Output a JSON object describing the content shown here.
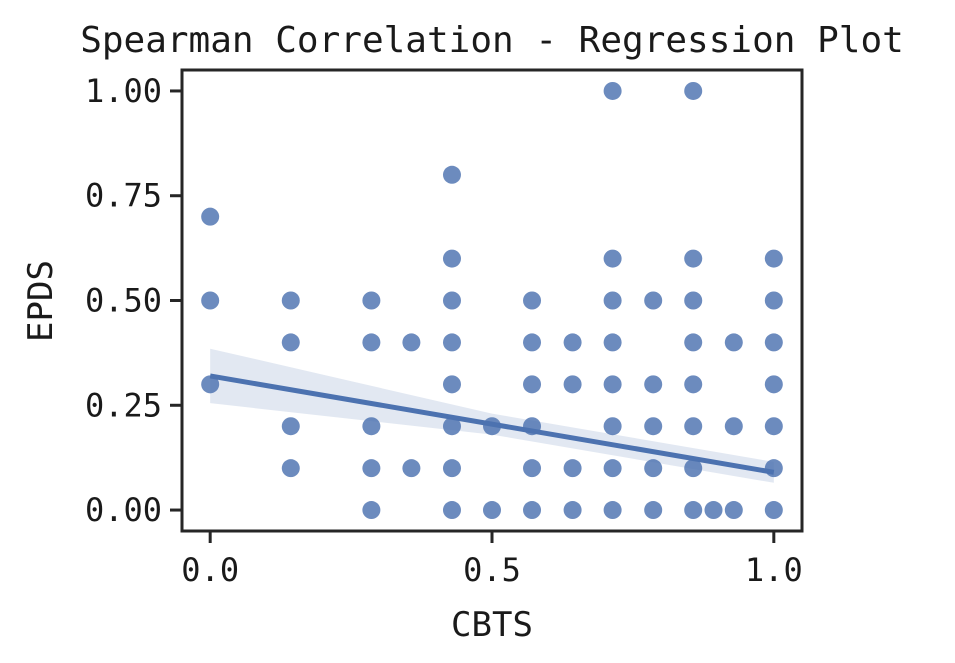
{
  "chart_data": {
    "type": "scatter",
    "title": "Spearman Correlation - Regression Plot",
    "xlabel": "CBTS",
    "ylabel": "EPDS",
    "xlim": [
      -0.05,
      1.05
    ],
    "ylim": [
      -0.05,
      1.05
    ],
    "x_ticks": [
      0.0,
      0.5,
      1.0
    ],
    "x_tick_labels": [
      "0.0",
      "0.5",
      "1.0"
    ],
    "y_ticks": [
      0.0,
      0.25,
      0.5,
      0.75,
      1.0
    ],
    "y_tick_labels": [
      "0.00",
      "0.25",
      "0.50",
      "0.75",
      "1.00"
    ],
    "grid": false,
    "colors": {
      "points": "#4c72b0",
      "line": "#4c72b0",
      "band": "#4c72b0"
    },
    "points": [
      [
        0.0,
        0.7
      ],
      [
        0.0,
        0.5
      ],
      [
        0.0,
        0.3
      ],
      [
        0.143,
        0.5
      ],
      [
        0.143,
        0.4
      ],
      [
        0.143,
        0.2
      ],
      [
        0.143,
        0.1
      ],
      [
        0.286,
        0.5
      ],
      [
        0.286,
        0.4
      ],
      [
        0.286,
        0.2
      ],
      [
        0.286,
        0.1
      ],
      [
        0.286,
        0.0
      ],
      [
        0.357,
        0.4
      ],
      [
        0.357,
        0.1
      ],
      [
        0.429,
        0.8
      ],
      [
        0.429,
        0.6
      ],
      [
        0.429,
        0.5
      ],
      [
        0.429,
        0.4
      ],
      [
        0.429,
        0.3
      ],
      [
        0.429,
        0.2
      ],
      [
        0.429,
        0.1
      ],
      [
        0.429,
        0.0
      ],
      [
        0.5,
        0.2
      ],
      [
        0.5,
        0.0
      ],
      [
        0.571,
        0.5
      ],
      [
        0.571,
        0.4
      ],
      [
        0.571,
        0.3
      ],
      [
        0.571,
        0.2
      ],
      [
        0.571,
        0.1
      ],
      [
        0.571,
        0.0
      ],
      [
        0.643,
        0.4
      ],
      [
        0.643,
        0.3
      ],
      [
        0.643,
        0.1
      ],
      [
        0.643,
        0.0
      ],
      [
        0.714,
        1.0
      ],
      [
        0.714,
        0.6
      ],
      [
        0.714,
        0.5
      ],
      [
        0.714,
        0.4
      ],
      [
        0.714,
        0.3
      ],
      [
        0.714,
        0.2
      ],
      [
        0.714,
        0.1
      ],
      [
        0.714,
        0.0
      ],
      [
        0.786,
        0.5
      ],
      [
        0.786,
        0.3
      ],
      [
        0.786,
        0.2
      ],
      [
        0.786,
        0.1
      ],
      [
        0.786,
        0.0
      ],
      [
        0.857,
        1.0
      ],
      [
        0.857,
        0.6
      ],
      [
        0.857,
        0.5
      ],
      [
        0.857,
        0.4
      ],
      [
        0.857,
        0.3
      ],
      [
        0.857,
        0.2
      ],
      [
        0.857,
        0.1
      ],
      [
        0.857,
        0.0
      ],
      [
        0.893,
        0.0
      ],
      [
        0.929,
        0.4
      ],
      [
        0.929,
        0.2
      ],
      [
        0.929,
        0.0
      ],
      [
        1.0,
        0.6
      ],
      [
        1.0,
        0.5
      ],
      [
        1.0,
        0.4
      ],
      [
        1.0,
        0.3
      ],
      [
        1.0,
        0.2
      ],
      [
        1.0,
        0.1
      ],
      [
        1.0,
        0.0
      ]
    ],
    "regression_line": {
      "x": [
        0.0,
        1.0
      ],
      "y": [
        0.32,
        0.09
      ]
    },
    "confidence_band": {
      "x": [
        0.0,
        0.5,
        1.0
      ],
      "upper": [
        0.385,
        0.23,
        0.115
      ],
      "lower": [
        0.255,
        0.18,
        0.065
      ]
    }
  }
}
